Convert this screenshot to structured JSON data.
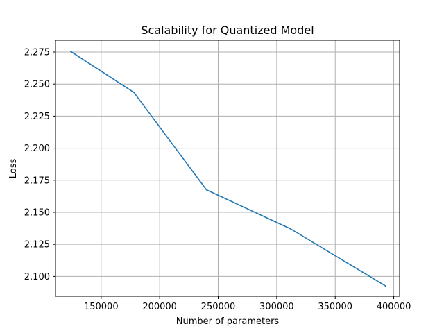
{
  "chart_data": {
    "type": "line",
    "title": "Scalability for Quantized Model",
    "xlabel": "Number of parameters",
    "ylabel": "Loss",
    "grid": true,
    "xlim": [
      111000,
      405000
    ],
    "ylim": [
      2.0845,
      2.2842
    ],
    "xticks": [
      150000,
      200000,
      250000,
      300000,
      350000,
      400000
    ],
    "xtick_labels": [
      "150000",
      "200000",
      "250000",
      "300000",
      "350000",
      "400000"
    ],
    "yticks": [
      2.1,
      2.125,
      2.15,
      2.175,
      2.2,
      2.225,
      2.25,
      2.275
    ],
    "ytick_labels": [
      "2.100",
      "2.125",
      "2.150",
      "2.175",
      "2.200",
      "2.225",
      "2.250",
      "2.275"
    ],
    "series": [
      {
        "color": "#1f77b4",
        "x": [
          124000,
          178000,
          240000,
          312000,
          393000
        ],
        "y": [
          2.2755,
          2.2435,
          2.1675,
          2.137,
          2.0925
        ]
      }
    ]
  }
}
